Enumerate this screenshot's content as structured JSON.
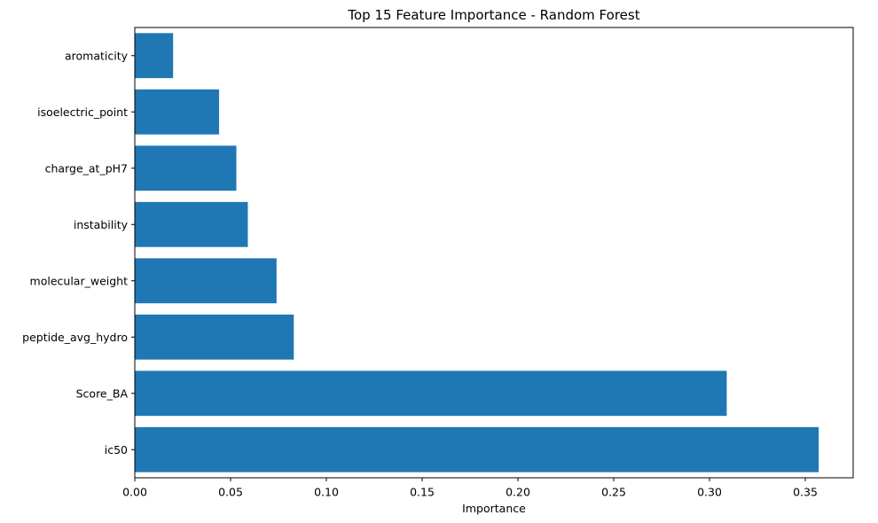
{
  "chart_data": {
    "type": "bar",
    "orientation": "horizontal",
    "title": "Top 15 Feature Importance - Random Forest",
    "xlabel": "Importance",
    "ylabel": "",
    "xlim": [
      0,
      0.375
    ],
    "xticks": [
      0.0,
      0.05,
      0.1,
      0.15,
      0.2,
      0.25,
      0.3,
      0.35
    ],
    "xtick_labels": [
      "0.00",
      "0.05",
      "0.10",
      "0.15",
      "0.20",
      "0.25",
      "0.30",
      "0.35"
    ],
    "categories": [
      "ic50",
      "Score_BA",
      "peptide_avg_hydro",
      "molecular_weight",
      "instability",
      "charge_at_pH7",
      "isoelectric_point",
      "aromaticity"
    ],
    "values": [
      0.357,
      0.309,
      0.083,
      0.074,
      0.059,
      0.053,
      0.044,
      0.02
    ],
    "bar_color": "#1f77b4",
    "grid": false,
    "legend": false
  }
}
